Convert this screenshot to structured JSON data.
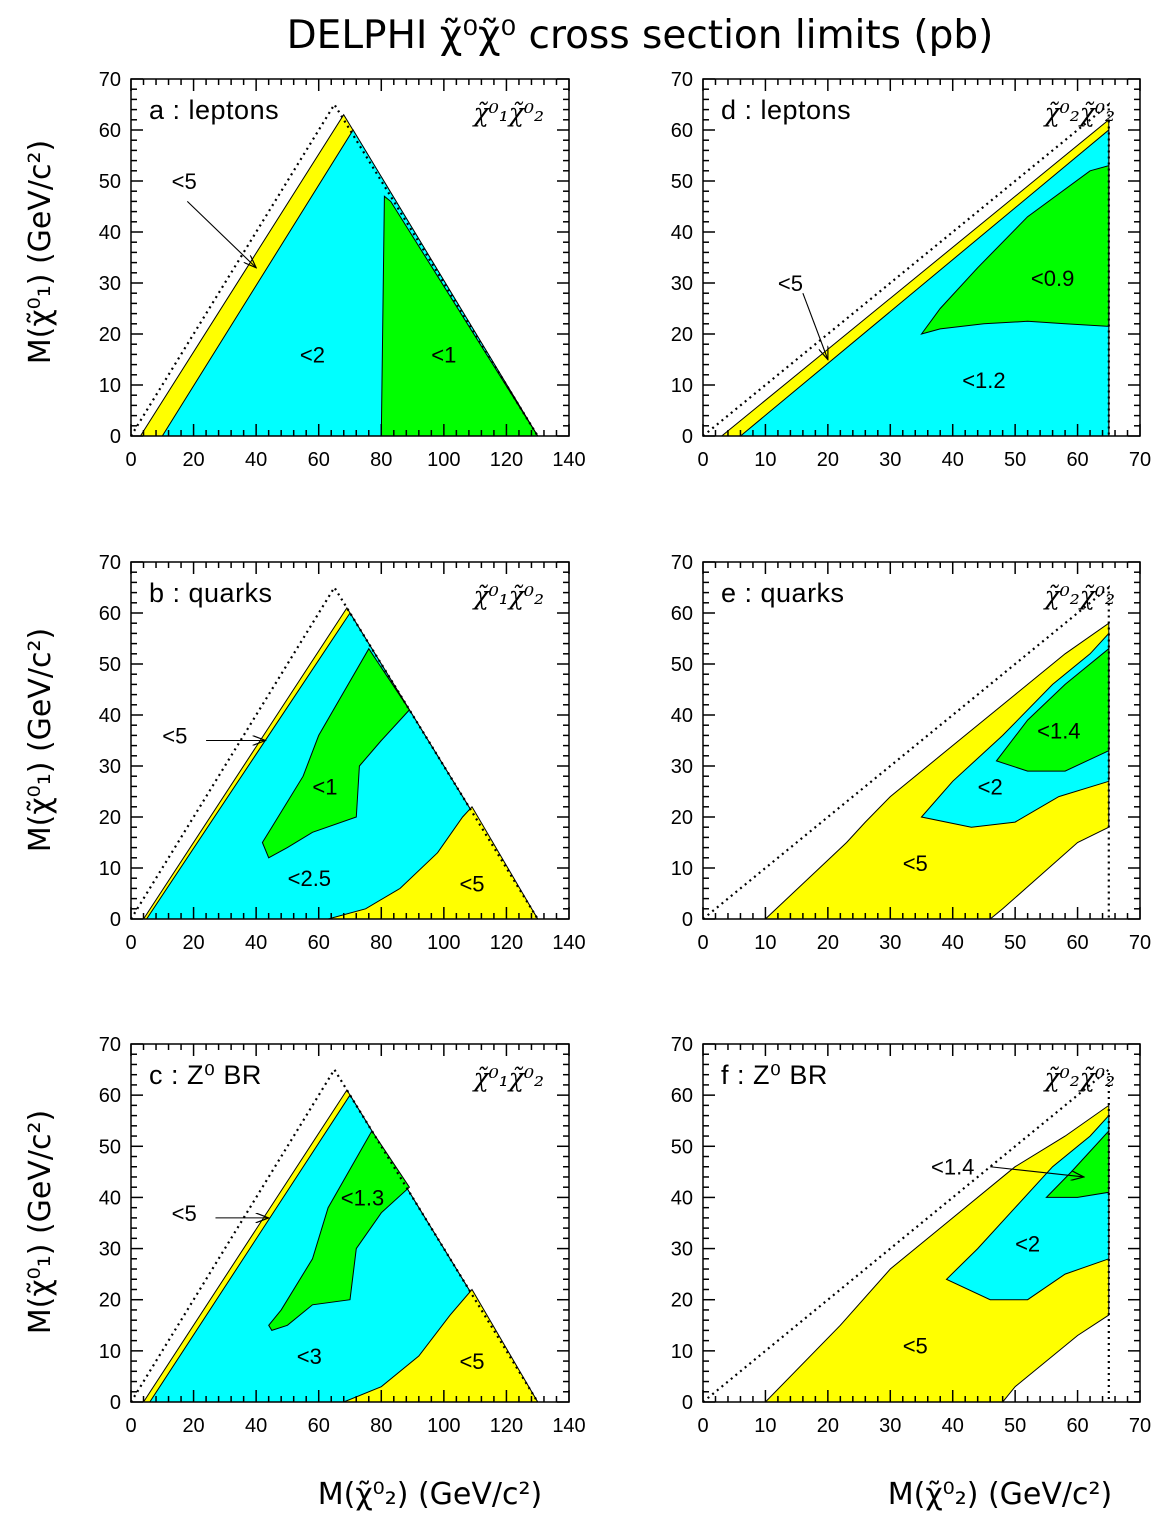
{
  "title": "DELPHI χ̃⁰χ̃⁰ cross section limits (pb)",
  "ylabel": "M(χ̃⁰₁) (GeV/c²)",
  "xlabel": "M(χ̃⁰₂) (GeV/c²)",
  "colors": {
    "yellow": "#ffff00",
    "cyan": "#00ffff",
    "green": "#00ff00",
    "white": "#ffffff"
  },
  "chart_data": [
    {
      "type": "area",
      "panel": "a",
      "label": "a : leptons",
      "process": "χ̃⁰₁χ̃⁰₂",
      "xlim": [
        0,
        140
      ],
      "ylim": [
        0,
        70
      ],
      "xticks": [
        0,
        20,
        40,
        60,
        80,
        100,
        120,
        140
      ],
      "yticks": [
        0,
        10,
        20,
        30,
        40,
        50,
        60,
        70
      ],
      "kinematic_limit": [
        [
          0,
          0
        ],
        [
          65,
          65
        ],
        [
          130,
          0
        ]
      ],
      "regions": [
        {
          "fill": "yellow",
          "points": [
            [
              3,
              0
            ],
            [
              68,
              63
            ],
            [
              130,
              0
            ]
          ]
        },
        {
          "fill": "cyan",
          "points": [
            [
              10,
              0
            ],
            [
              71,
              60
            ],
            [
              130,
              0
            ]
          ]
        },
        {
          "fill": "green",
          "points": [
            [
              80,
              0
            ],
            [
              81,
              47
            ],
            [
              83,
              46
            ],
            [
              130,
              0
            ]
          ]
        }
      ],
      "region_labels": [
        {
          "text": "<5",
          "x": 17,
          "y": 50
        },
        {
          "text": "<2",
          "x": 58,
          "y": 16
        },
        {
          "text": "<1",
          "x": 100,
          "y": 16
        }
      ],
      "arrows": [
        {
          "from": [
            18,
            46
          ],
          "to": [
            40,
            33
          ]
        }
      ]
    },
    {
      "type": "area",
      "panel": "b",
      "label": "b : quarks",
      "process": "χ̃⁰₁χ̃⁰₂",
      "xlim": [
        0,
        140
      ],
      "ylim": [
        0,
        70
      ],
      "xticks": [
        0,
        20,
        40,
        60,
        80,
        100,
        120,
        140
      ],
      "yticks": [
        0,
        10,
        20,
        30,
        40,
        50,
        60,
        70
      ],
      "kinematic_limit": [
        [
          0,
          0
        ],
        [
          65,
          65
        ],
        [
          130,
          0
        ]
      ],
      "regions": [
        {
          "fill": "yellow",
          "points": [
            [
              4,
              0
            ],
            [
              69,
              61
            ],
            [
              130,
              0
            ]
          ]
        },
        {
          "fill": "cyan",
          "points": [
            [
              5,
              0
            ],
            [
              70,
              60
            ],
            [
              130,
              0
            ]
          ]
        },
        {
          "fill": "green",
          "points": [
            [
              42,
              15
            ],
            [
              45,
              18
            ],
            [
              55,
              28
            ],
            [
              60,
              36
            ],
            [
              76,
              53
            ],
            [
              89,
              41
            ],
            [
              80,
              35
            ],
            [
              73,
              30
            ],
            [
              72,
              20
            ],
            [
              58,
              17
            ],
            [
              50,
              14
            ],
            [
              44,
              12
            ]
          ]
        },
        {
          "fill": "yellow",
          "points": [
            [
              63,
              0
            ],
            [
              75,
              2
            ],
            [
              86,
              6
            ],
            [
              98,
              13
            ],
            [
              106,
              20
            ],
            [
              109,
              22
            ],
            [
              130,
              0
            ]
          ]
        }
      ],
      "region_labels": [
        {
          "text": "<5",
          "x": 14,
          "y": 36
        },
        {
          "text": "<1",
          "x": 62,
          "y": 26
        },
        {
          "text": "<2.5",
          "x": 57,
          "y": 8
        },
        {
          "text": "<5",
          "x": 109,
          "y": 7
        }
      ],
      "arrows": [
        {
          "from": [
            24,
            35
          ],
          "to": [
            43,
            35
          ]
        }
      ]
    },
    {
      "type": "area",
      "panel": "c",
      "label": "c : Z⁰ BR",
      "process": "χ̃⁰₁χ̃⁰₂",
      "xlim": [
        0,
        140
      ],
      "ylim": [
        0,
        70
      ],
      "xticks": [
        0,
        20,
        40,
        60,
        80,
        100,
        120,
        140
      ],
      "yticks": [
        0,
        10,
        20,
        30,
        40,
        50,
        60,
        70
      ],
      "kinematic_limit": [
        [
          0,
          0
        ],
        [
          65,
          65
        ],
        [
          130,
          0
        ]
      ],
      "regions": [
        {
          "fill": "yellow",
          "points": [
            [
              4,
              0
            ],
            [
              69,
              61
            ],
            [
              130,
              0
            ]
          ]
        },
        {
          "fill": "cyan",
          "points": [
            [
              6,
              0
            ],
            [
              70,
              60
            ],
            [
              130,
              0
            ]
          ]
        },
        {
          "fill": "green",
          "points": [
            [
              44,
              15
            ],
            [
              48,
              18
            ],
            [
              58,
              28
            ],
            [
              63,
              38
            ],
            [
              77,
              53
            ],
            [
              89,
              42
            ],
            [
              80,
              37
            ],
            [
              72,
              30
            ],
            [
              70,
              20
            ],
            [
              58,
              19
            ],
            [
              50,
              15
            ],
            [
              45,
              14
            ]
          ]
        },
        {
          "fill": "yellow",
          "points": [
            [
              68,
              0
            ],
            [
              80,
              3
            ],
            [
              92,
              9
            ],
            [
              102,
              17
            ],
            [
              109,
              22
            ],
            [
              130,
              0
            ]
          ]
        }
      ],
      "region_labels": [
        {
          "text": "<5",
          "x": 17,
          "y": 37
        },
        {
          "text": "<1.3",
          "x": 74,
          "y": 40
        },
        {
          "text": "<3",
          "x": 57,
          "y": 9
        },
        {
          "text": "<5",
          "x": 109,
          "y": 8
        }
      ],
      "arrows": [
        {
          "from": [
            27,
            36
          ],
          "to": [
            44,
            36
          ]
        }
      ]
    },
    {
      "type": "area",
      "panel": "d",
      "label": "d : leptons",
      "process": "χ̃⁰₂χ̃⁰₂",
      "xlim": [
        0,
        70
      ],
      "ylim": [
        0,
        70
      ],
      "xticks": [
        0,
        10,
        20,
        30,
        40,
        50,
        60,
        70
      ],
      "yticks": [
        0,
        10,
        20,
        30,
        40,
        50,
        60,
        70
      ],
      "kinematic_limit": [
        [
          0,
          0
        ],
        [
          65,
          65
        ],
        [
          65,
          0
        ]
      ],
      "regions": [
        {
          "fill": "yellow",
          "points": [
            [
              3,
              0
            ],
            [
              65,
              62
            ],
            [
              65,
              0
            ]
          ]
        },
        {
          "fill": "cyan",
          "points": [
            [
              6,
              0
            ],
            [
              65,
              60
            ],
            [
              65,
              0
            ]
          ]
        },
        {
          "fill": "green",
          "points": [
            [
              35,
              20
            ],
            [
              38,
              25
            ],
            [
              44,
              33
            ],
            [
              52,
              43
            ],
            [
              62,
              52
            ],
            [
              65,
              53
            ],
            [
              65,
              21.5
            ],
            [
              58,
              22
            ],
            [
              52,
              22.5
            ],
            [
              45,
              22
            ],
            [
              38,
              21
            ]
          ]
        }
      ],
      "region_labels": [
        {
          "text": "<5",
          "x": 14,
          "y": 30
        },
        {
          "text": "<0.9",
          "x": 56,
          "y": 31
        },
        {
          "text": "<1.2",
          "x": 45,
          "y": 11
        }
      ],
      "arrows": [
        {
          "from": [
            16,
            28
          ],
          "to": [
            20,
            15
          ]
        }
      ]
    },
    {
      "type": "area",
      "panel": "e",
      "label": "e : quarks",
      "process": "χ̃⁰₂χ̃⁰₂",
      "xlim": [
        0,
        70
      ],
      "ylim": [
        0,
        70
      ],
      "xticks": [
        0,
        10,
        20,
        30,
        40,
        50,
        60,
        70
      ],
      "yticks": [
        0,
        10,
        20,
        30,
        40,
        50,
        60,
        70
      ],
      "kinematic_limit": [
        [
          0,
          0
        ],
        [
          65,
          65
        ],
        [
          65,
          0
        ]
      ],
      "regions": [
        {
          "fill": "yellow",
          "points": [
            [
              10,
              0
            ],
            [
              23,
              15
            ],
            [
              26,
              19
            ],
            [
              30,
              24
            ],
            [
              38,
              32
            ],
            [
              50,
              44
            ],
            [
              58,
              52
            ],
            [
              65,
              58
            ],
            [
              65,
              18
            ],
            [
              60,
              15
            ],
            [
              48,
              2
            ],
            [
              46,
              0
            ]
          ]
        },
        {
          "fill": "cyan",
          "points": [
            [
              35,
              20
            ],
            [
              40,
              27
            ],
            [
              48,
              36
            ],
            [
              56,
              46
            ],
            [
              62,
              52
            ],
            [
              65,
              56
            ],
            [
              65,
              27
            ],
            [
              57,
              24
            ],
            [
              50,
              19
            ],
            [
              43,
              18
            ]
          ]
        },
        {
          "fill": "green",
          "points": [
            [
              47,
              31
            ],
            [
              52,
              39
            ],
            [
              58,
              46
            ],
            [
              65,
              53
            ],
            [
              65,
              33
            ],
            [
              58,
              29
            ],
            [
              52,
              29
            ]
          ]
        }
      ],
      "region_labels": [
        {
          "text": "<1.4",
          "x": 57,
          "y": 37
        },
        {
          "text": "<2",
          "x": 46,
          "y": 26
        },
        {
          "text": "<5",
          "x": 34,
          "y": 11
        }
      ],
      "arrows": []
    },
    {
      "type": "area",
      "panel": "f",
      "label": "f : Z⁰ BR",
      "process": "χ̃⁰₂χ̃⁰₂",
      "xlim": [
        0,
        70
      ],
      "ylim": [
        0,
        70
      ],
      "xticks": [
        0,
        10,
        20,
        30,
        40,
        50,
        60,
        70
      ],
      "yticks": [
        0,
        10,
        20,
        30,
        40,
        50,
        60,
        70
      ],
      "kinematic_limit": [
        [
          0,
          0
        ],
        [
          65,
          65
        ],
        [
          65,
          0
        ]
      ],
      "regions": [
        {
          "fill": "yellow",
          "points": [
            [
              10,
              0
            ],
            [
              22,
              15
            ],
            [
              30,
              26
            ],
            [
              38,
              34
            ],
            [
              50,
              46
            ],
            [
              58,
              52
            ],
            [
              65,
              58
            ],
            [
              65,
              17
            ],
            [
              60,
              13
            ],
            [
              50,
              3
            ],
            [
              48,
              0
            ]
          ]
        },
        {
          "fill": "cyan",
          "points": [
            [
              39,
              24
            ],
            [
              44,
              30
            ],
            [
              50,
              38
            ],
            [
              56,
              46
            ],
            [
              62,
              52
            ],
            [
              65,
              56
            ],
            [
              65,
              28
            ],
            [
              58,
              25
            ],
            [
              52,
              20
            ],
            [
              46,
              20
            ]
          ]
        },
        {
          "fill": "green",
          "points": [
            [
              55,
              40
            ],
            [
              59,
              45
            ],
            [
              62,
              49
            ],
            [
              65,
              53
            ],
            [
              65,
              41
            ],
            [
              60,
              40
            ]
          ]
        }
      ],
      "region_labels": [
        {
          "text": "<1.4",
          "x": 40,
          "y": 46
        },
        {
          "text": "<2",
          "x": 52,
          "y": 31
        },
        {
          "text": "<5",
          "x": 34,
          "y": 11
        }
      ],
      "arrows": [
        {
          "from": [
            46,
            46
          ],
          "to": [
            61,
            44
          ]
        }
      ]
    }
  ]
}
